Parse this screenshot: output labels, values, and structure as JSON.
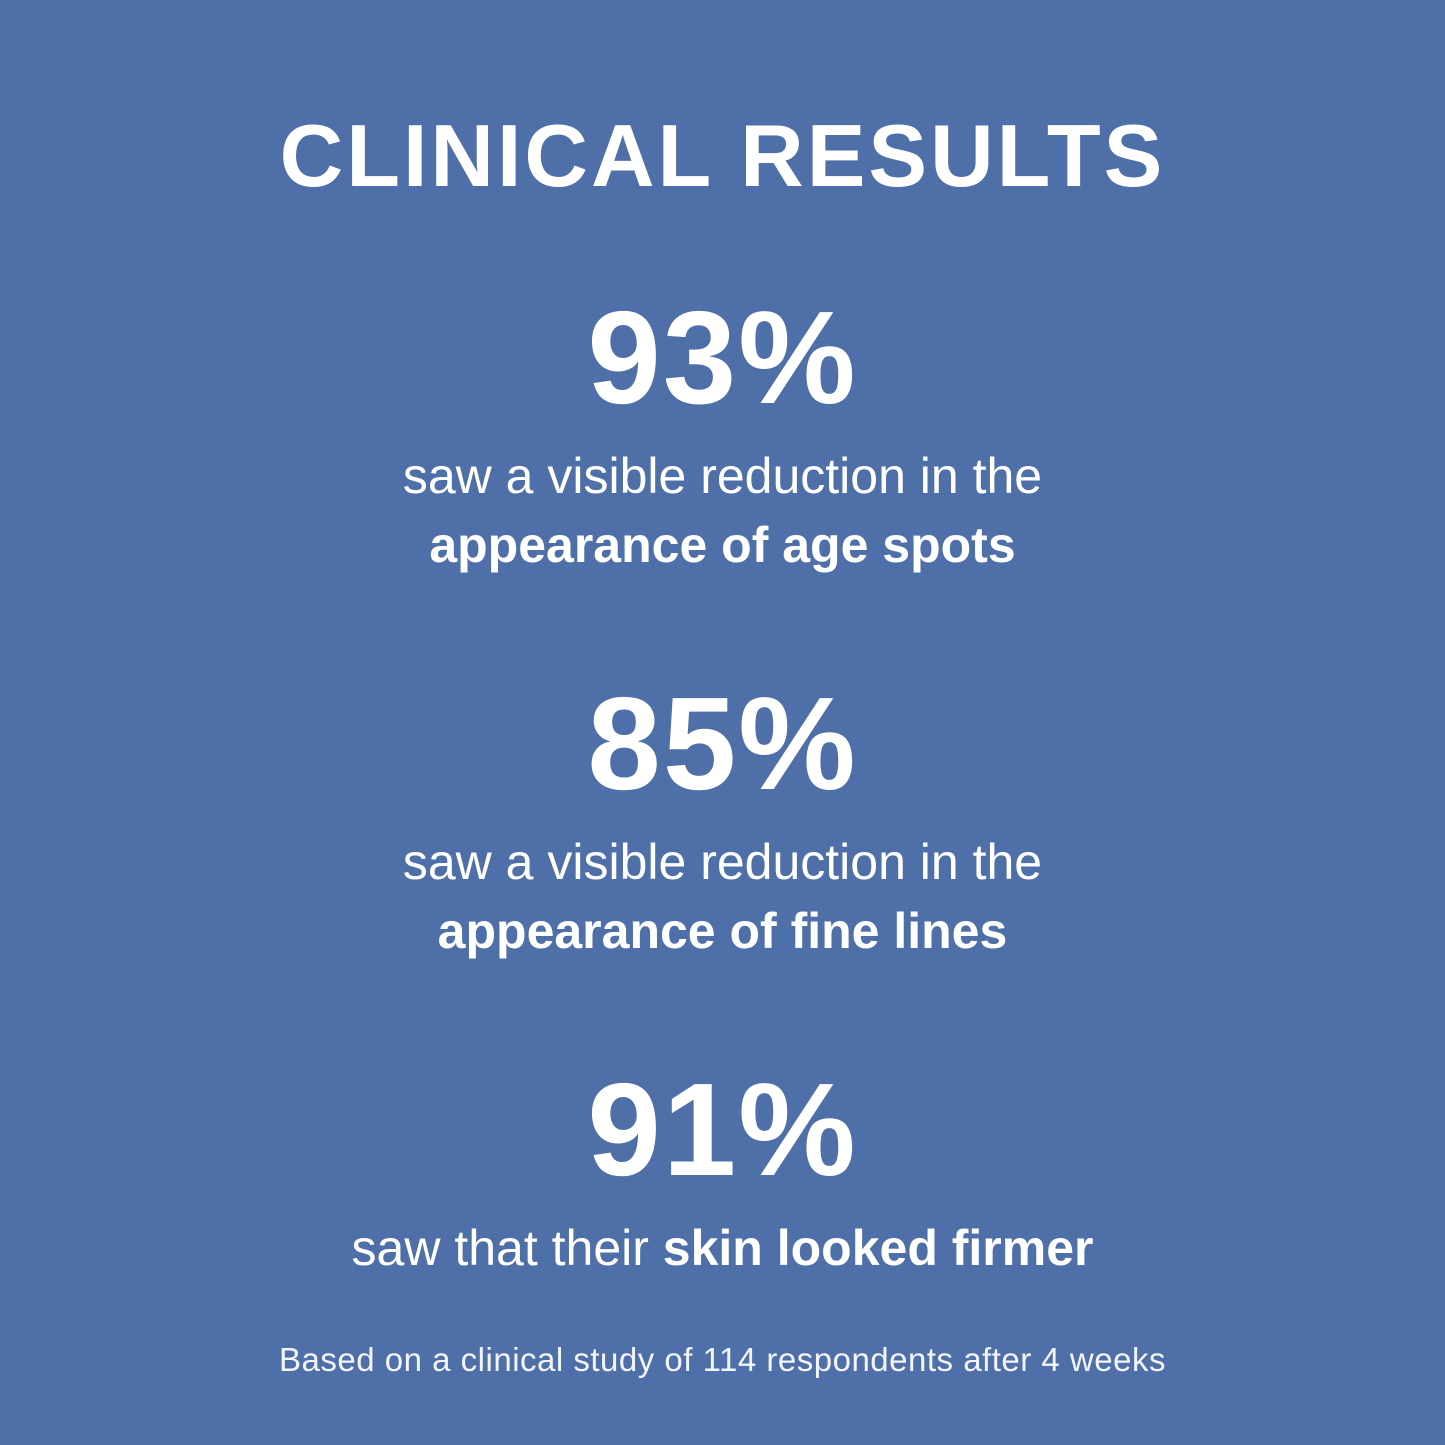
{
  "canvas": {
    "background_color": "#4F6FA8",
    "text_color": "#FFFFFF"
  },
  "title": "CLINICAL RESULTS",
  "stats": [
    {
      "value": "93%",
      "description_line1": "saw a visible reduction in the",
      "description_line2": "appearance of age spots"
    },
    {
      "value": "85%",
      "description_line1": "saw a visible reduction in the",
      "description_line2": "appearance of fine lines"
    },
    {
      "value": "91%",
      "description_normal": "saw that their ",
      "description_bold": "skin looked firmer"
    }
  ],
  "footnote": "Based on a clinical study of 114 respondents after 4 weeks"
}
